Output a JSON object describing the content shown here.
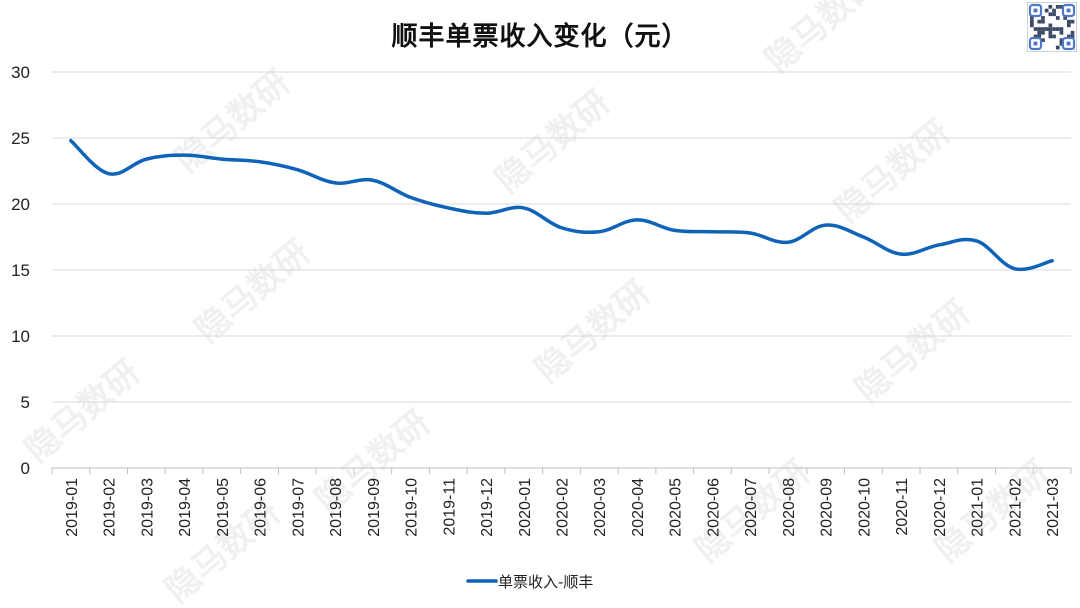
{
  "watermark_text": "隐马数研",
  "chart_data": {
    "type": "line",
    "title": "顺丰单票收入变化（元）",
    "xlabel": "",
    "ylabel": "",
    "categories": [
      "2019-01",
      "2019-02",
      "2019-03",
      "2019-04",
      "2019-05",
      "2019-06",
      "2019-07",
      "2019-08",
      "2019-09",
      "2019-10",
      "2019-11",
      "2019-12",
      "2020-01",
      "2020-02",
      "2020-03",
      "2020-04",
      "2020-05",
      "2020-06",
      "2020-07",
      "2020-08",
      "2020-09",
      "2020-10",
      "2020-11",
      "2020-12",
      "2021-01",
      "2021-02",
      "2021-03"
    ],
    "series": [
      {
        "name": "单票收入-顺丰",
        "color": "#0f63b8",
        "values": [
          24.8,
          22.3,
          23.4,
          23.7,
          23.4,
          23.2,
          22.6,
          21.6,
          21.8,
          20.5,
          19.7,
          19.3,
          19.7,
          18.2,
          17.9,
          18.8,
          18.0,
          17.9,
          17.8,
          17.1,
          18.4,
          17.5,
          16.2,
          16.9,
          17.2,
          15.1,
          15.7
        ]
      }
    ],
    "ylim": [
      0,
      30
    ],
    "yticks": [
      0,
      5,
      10,
      15,
      20,
      25,
      30
    ],
    "grid": true,
    "legend_position": "bottom"
  },
  "colors": {
    "line": "#0f63b8",
    "grid": "#d9d9d9",
    "axis": "#bfbfbf"
  },
  "qr_icon": "qr-code-icon"
}
